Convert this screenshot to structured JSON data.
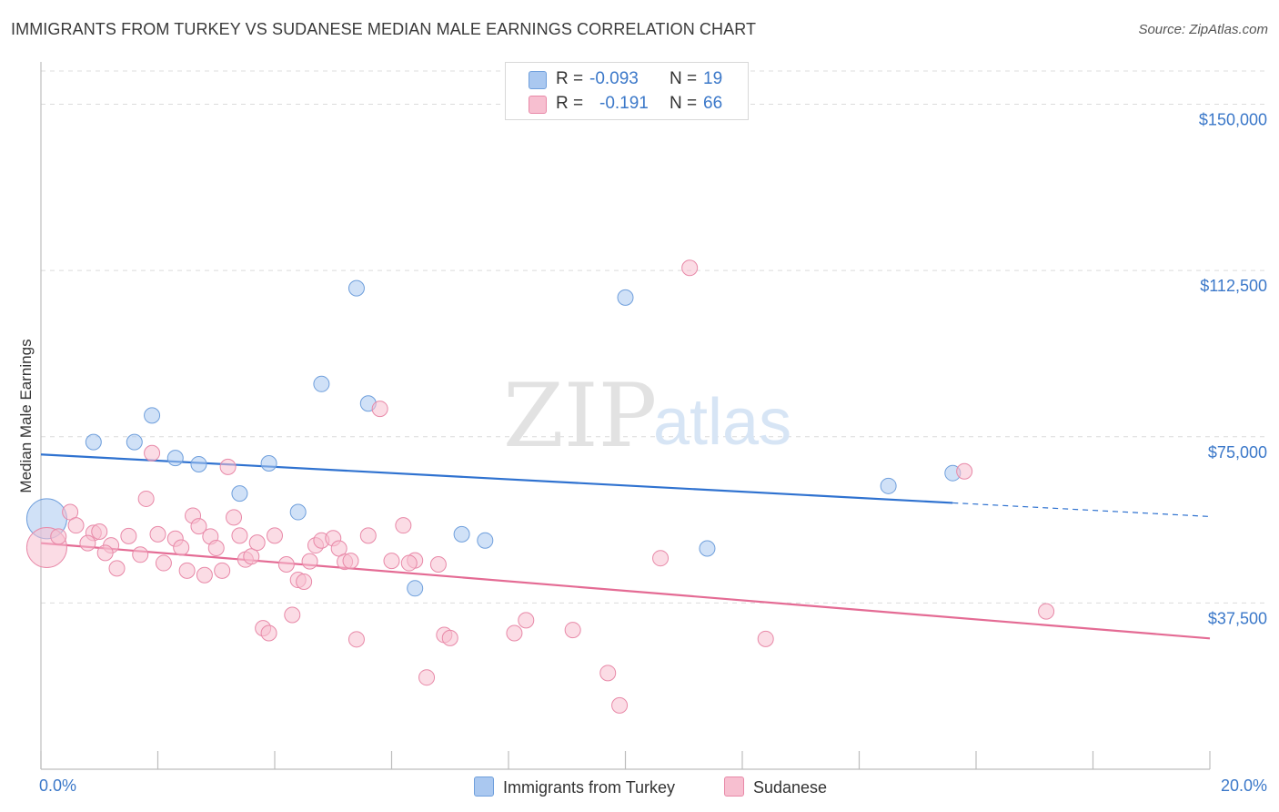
{
  "title": "IMMIGRANTS FROM TURKEY VS SUDANESE MEDIAN MALE EARNINGS CORRELATION CHART",
  "source": "Source: ZipAtlas.com",
  "watermark": {
    "zip": "ZIP",
    "atlas": "atlas"
  },
  "legend": {
    "rows": [
      {
        "r_label": "R =",
        "r_value": "-0.093",
        "n_label": "N =",
        "n_value": "19",
        "color": "#aac8f0",
        "border": "#6f9fdc"
      },
      {
        "r_label": "R =",
        "r_value": "-0.191",
        "n_label": "N =",
        "n_value": "66",
        "color": "#f7bfd0",
        "border": "#e889a8"
      }
    ]
  },
  "bottom_legend": [
    {
      "label": "Immigrants from Turkey",
      "color": "#aac8f0",
      "border": "#6f9fdc"
    },
    {
      "label": "Sudanese",
      "color": "#f7bfd0",
      "border": "#e889a8"
    }
  ],
  "chart_data": {
    "type": "scatter",
    "title": "IMMIGRANTS FROM TURKEY VS SUDANESE MEDIAN MALE EARNINGS CORRELATION CHART",
    "xlabel": "",
    "ylabel": "Median Male Earnings",
    "xlim": [
      0,
      20
    ],
    "ylim": [
      0,
      157500
    ],
    "x_tick_labels": [
      "0.0%",
      "20.0%"
    ],
    "x_ticks": [
      0,
      20
    ],
    "x_minor_ticks": [
      0,
      2,
      4,
      6,
      8,
      10,
      12,
      14,
      16,
      18,
      20
    ],
    "y_ticks": [
      37500,
      75000,
      112500,
      150000
    ],
    "y_tick_labels": [
      "$37,500",
      "$75,000",
      "$112,500",
      "$150,000"
    ],
    "grid": true,
    "series": [
      {
        "name": "Immigrants from Turkey",
        "color": "#6f9fdc",
        "fill": "#aac8f0",
        "points": [
          [
            0.1,
            56500,
            "big"
          ],
          [
            0.9,
            73800
          ],
          [
            1.6,
            73800
          ],
          [
            1.9,
            79800
          ],
          [
            2.3,
            70200
          ],
          [
            2.7,
            68800
          ],
          [
            3.4,
            62200
          ],
          [
            3.9,
            69000
          ],
          [
            4.4,
            58000
          ],
          [
            4.8,
            86900
          ],
          [
            5.4,
            108500
          ],
          [
            5.6,
            82500
          ],
          [
            6.4,
            40800
          ],
          [
            7.2,
            53000
          ],
          [
            7.6,
            51600
          ],
          [
            10.0,
            106400
          ],
          [
            11.4,
            49800
          ],
          [
            14.5,
            63900
          ],
          [
            15.6,
            66800
          ]
        ],
        "trend": {
          "x0": 0,
          "y0": 71000,
          "x1": 20,
          "y1": 57000,
          "solid_until": 15.6
        }
      },
      {
        "name": "Sudanese",
        "color": "#e889a8",
        "fill": "#f7bfd0",
        "points": [
          [
            0.1,
            50000,
            "big"
          ],
          [
            0.3,
            52500
          ],
          [
            0.5,
            58000
          ],
          [
            0.6,
            55000
          ],
          [
            0.9,
            53300
          ],
          [
            1.0,
            53600
          ],
          [
            1.2,
            50500
          ],
          [
            1.3,
            45300
          ],
          [
            1.5,
            52600
          ],
          [
            1.7,
            48400
          ],
          [
            1.8,
            61000
          ],
          [
            1.9,
            71300
          ],
          [
            2.1,
            46500
          ],
          [
            2.3,
            52000
          ],
          [
            2.4,
            50000
          ],
          [
            2.5,
            44800
          ],
          [
            2.6,
            57200
          ],
          [
            2.7,
            54800
          ],
          [
            2.9,
            52500
          ],
          [
            3.0,
            49900
          ],
          [
            3.1,
            44800
          ],
          [
            3.2,
            68200
          ],
          [
            3.3,
            56800
          ],
          [
            3.4,
            52700
          ],
          [
            3.5,
            47300
          ],
          [
            3.6,
            48000
          ],
          [
            3.8,
            31800
          ],
          [
            3.9,
            30700
          ],
          [
            4.0,
            52700
          ],
          [
            4.2,
            46200
          ],
          [
            4.3,
            34800
          ],
          [
            4.4,
            42700
          ],
          [
            4.5,
            42300
          ],
          [
            4.7,
            50500
          ],
          [
            4.8,
            51600
          ],
          [
            5.0,
            52100
          ],
          [
            5.1,
            49800
          ],
          [
            5.2,
            46800
          ],
          [
            5.4,
            29300
          ],
          [
            5.6,
            52700
          ],
          [
            5.8,
            81300
          ],
          [
            6.0,
            47000
          ],
          [
            6.2,
            55000
          ],
          [
            6.4,
            47100
          ],
          [
            6.6,
            20700
          ],
          [
            6.8,
            46200
          ],
          [
            6.9,
            30300
          ],
          [
            8.1,
            30700
          ],
          [
            8.3,
            33600
          ],
          [
            9.1,
            31400
          ],
          [
            9.7,
            21700
          ],
          [
            9.9,
            14400
          ],
          [
            10.6,
            47600
          ],
          [
            11.1,
            113100
          ],
          [
            12.4,
            29400
          ],
          [
            15.8,
            67200
          ],
          [
            17.2,
            35600
          ],
          [
            0.8,
            51000
          ],
          [
            1.1,
            48800
          ],
          [
            2.0,
            53000
          ],
          [
            2.8,
            43800
          ],
          [
            3.7,
            51100
          ],
          [
            4.6,
            46900
          ],
          [
            5.3,
            47000
          ],
          [
            6.3,
            46500
          ],
          [
            7.0,
            29600
          ]
        ],
        "trend": {
          "x0": 0,
          "y0": 51000,
          "x1": 20,
          "y1": 29500,
          "solid_until": 20
        }
      }
    ]
  }
}
